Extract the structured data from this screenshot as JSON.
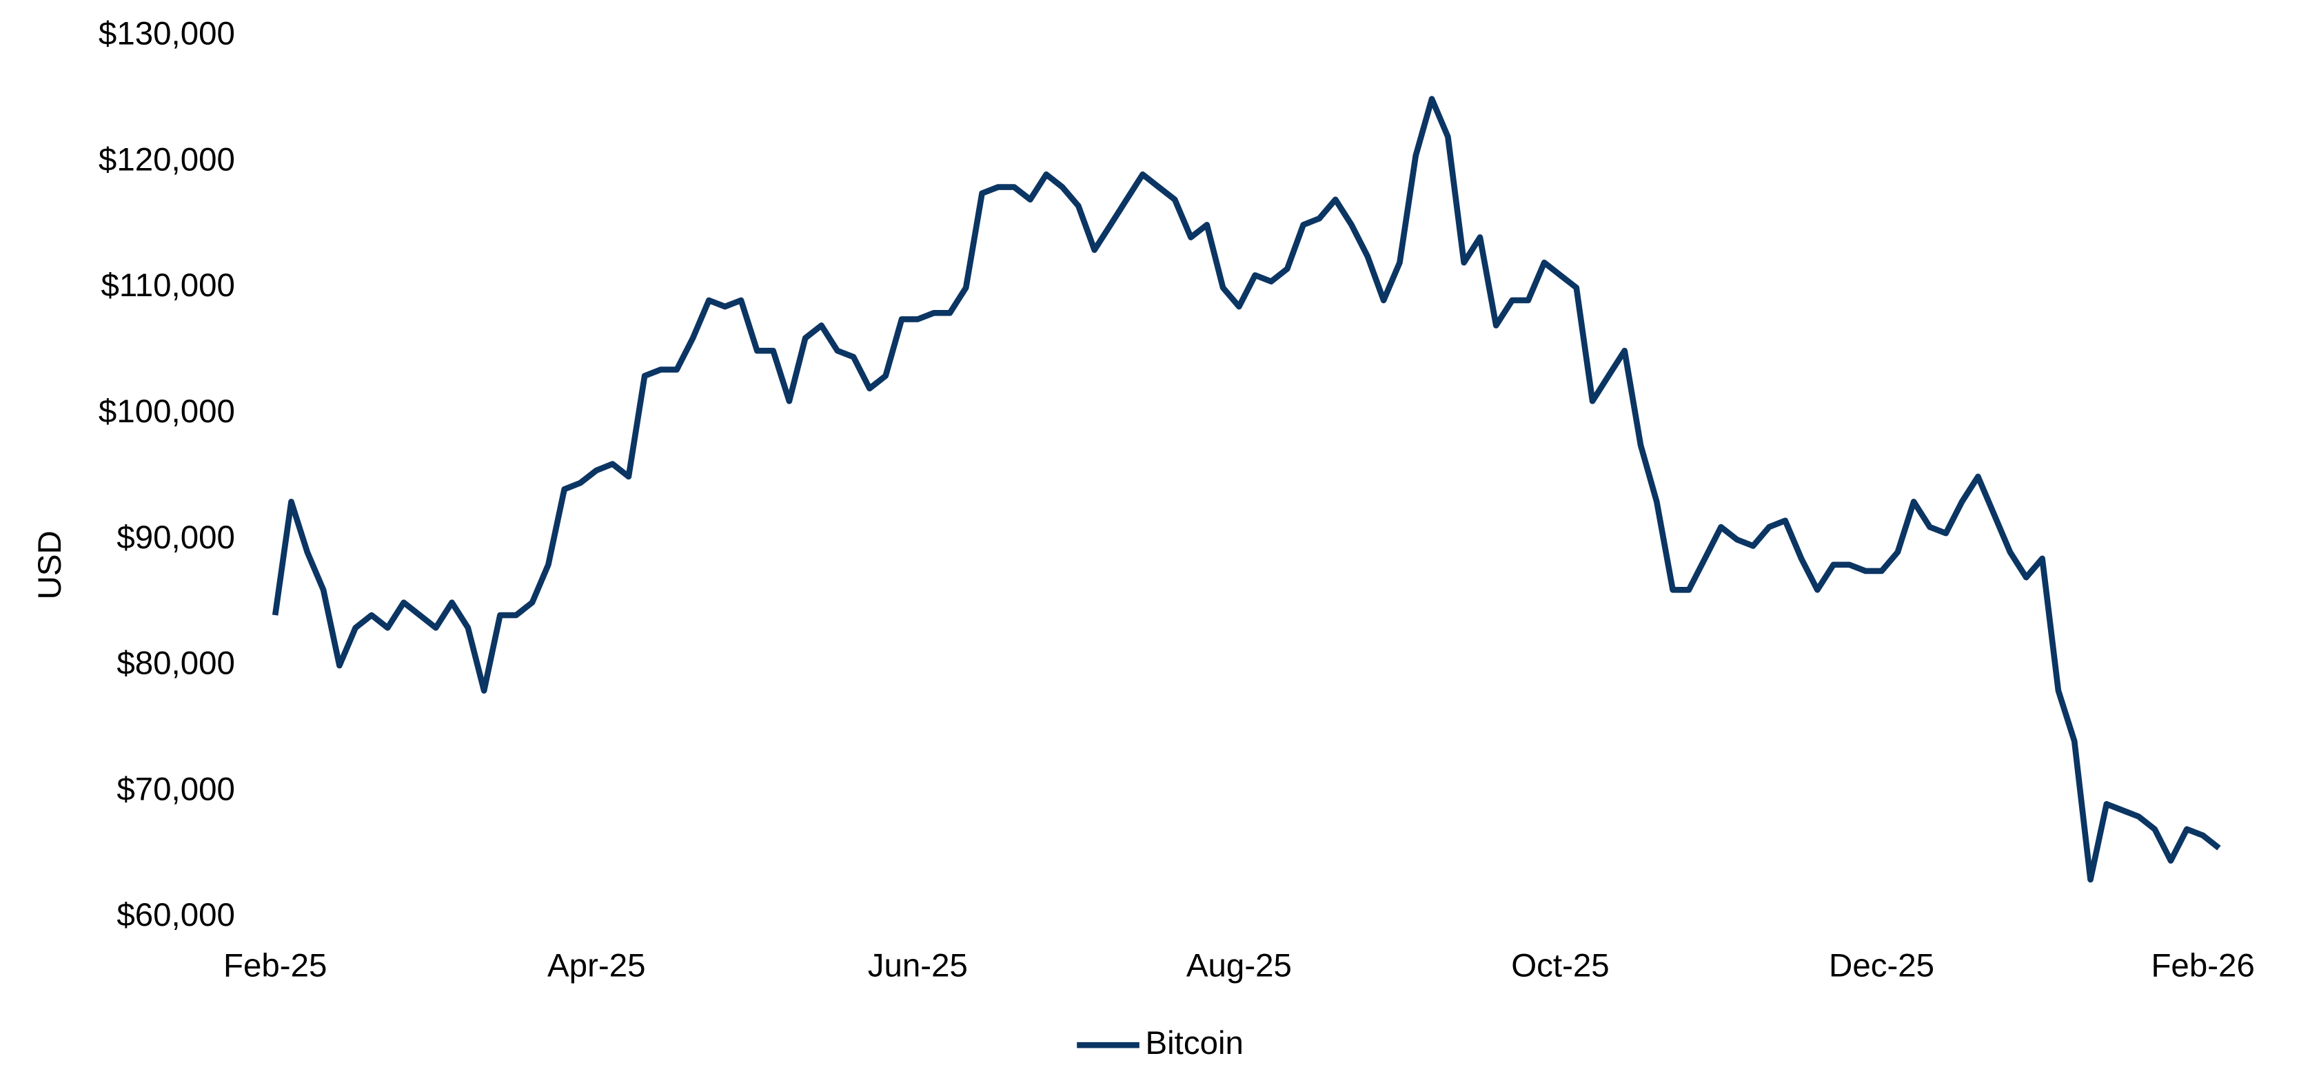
{
  "chart_data": {
    "type": "line",
    "y_label": "USD",
    "categories": [
      "Feb-25",
      null,
      null,
      null,
      null,
      null,
      null,
      null,
      null,
      null,
      null,
      null,
      null,
      null,
      null,
      null,
      null,
      null,
      null,
      null,
      "Apr-25",
      null,
      null,
      null,
      null,
      null,
      null,
      null,
      null,
      null,
      null,
      null,
      null,
      null,
      null,
      null,
      null,
      null,
      null,
      null,
      "Jun-25",
      null,
      null,
      null,
      null,
      null,
      null,
      null,
      null,
      null,
      null,
      null,
      null,
      null,
      null,
      null,
      null,
      null,
      null,
      null,
      "Aug-25",
      null,
      null,
      null,
      null,
      null,
      null,
      null,
      null,
      null,
      null,
      null,
      null,
      null,
      null,
      null,
      null,
      null,
      null,
      null,
      "Oct-25",
      null,
      null,
      null,
      null,
      null,
      null,
      null,
      null,
      null,
      null,
      null,
      null,
      null,
      null,
      null,
      null,
      null,
      null,
      null,
      "Dec-25",
      null,
      null,
      null,
      null,
      null,
      null,
      null,
      null,
      null,
      null,
      null,
      null,
      null,
      null,
      null,
      null,
      null,
      null,
      null,
      "Feb-26",
      null
    ],
    "series": [
      {
        "name": "Bitcoin",
        "color": "#0b3563",
        "values": [
          84000,
          93000,
          89000,
          86000,
          80000,
          83000,
          84000,
          83000,
          85000,
          84000,
          83000,
          85000,
          83000,
          78000,
          84000,
          84000,
          85000,
          88000,
          94000,
          94500,
          95500,
          96000,
          95000,
          103000,
          103500,
          103500,
          106000,
          109000,
          108500,
          109000,
          105000,
          105000,
          101000,
          106000,
          107000,
          105000,
          104500,
          102000,
          103000,
          107500,
          107500,
          108000,
          108000,
          110000,
          117500,
          118000,
          118000,
          117000,
          119000,
          118000,
          116500,
          113000,
          115000,
          117000,
          119000,
          118000,
          117000,
          114000,
          115000,
          110000,
          108500,
          111000,
          110500,
          111500,
          115000,
          115500,
          117000,
          115000,
          112500,
          109000,
          112000,
          120500,
          125000,
          122000,
          112000,
          114000,
          107000,
          109000,
          109000,
          112000,
          111000,
          110000,
          101000,
          103000,
          105000,
          97500,
          93000,
          86000,
          86000,
          88500,
          91000,
          90000,
          89500,
          91000,
          91500,
          88500,
          86000,
          88000,
          88000,
          87500,
          87500,
          89000,
          93000,
          91000,
          90500,
          93000,
          95000,
          92000,
          89000,
          87000,
          88500,
          78000,
          74000,
          63000,
          69000,
          68500,
          68000,
          67000,
          64500,
          67000,
          66500,
          65500
        ]
      }
    ],
    "ylim": [
      60000,
      130000
    ],
    "yticks": [
      {
        "value": 60000,
        "label": "$60,000"
      },
      {
        "value": 70000,
        "label": "$70,000"
      },
      {
        "value": 80000,
        "label": "$80,000"
      },
      {
        "value": 90000,
        "label": "$90,000"
      },
      {
        "value": 100000,
        "label": "$100,000"
      },
      {
        "value": 110000,
        "label": "$110,000"
      },
      {
        "value": 120000,
        "label": "$120,000"
      },
      {
        "value": 130000,
        "label": "$130,000"
      }
    ],
    "grid": false
  }
}
